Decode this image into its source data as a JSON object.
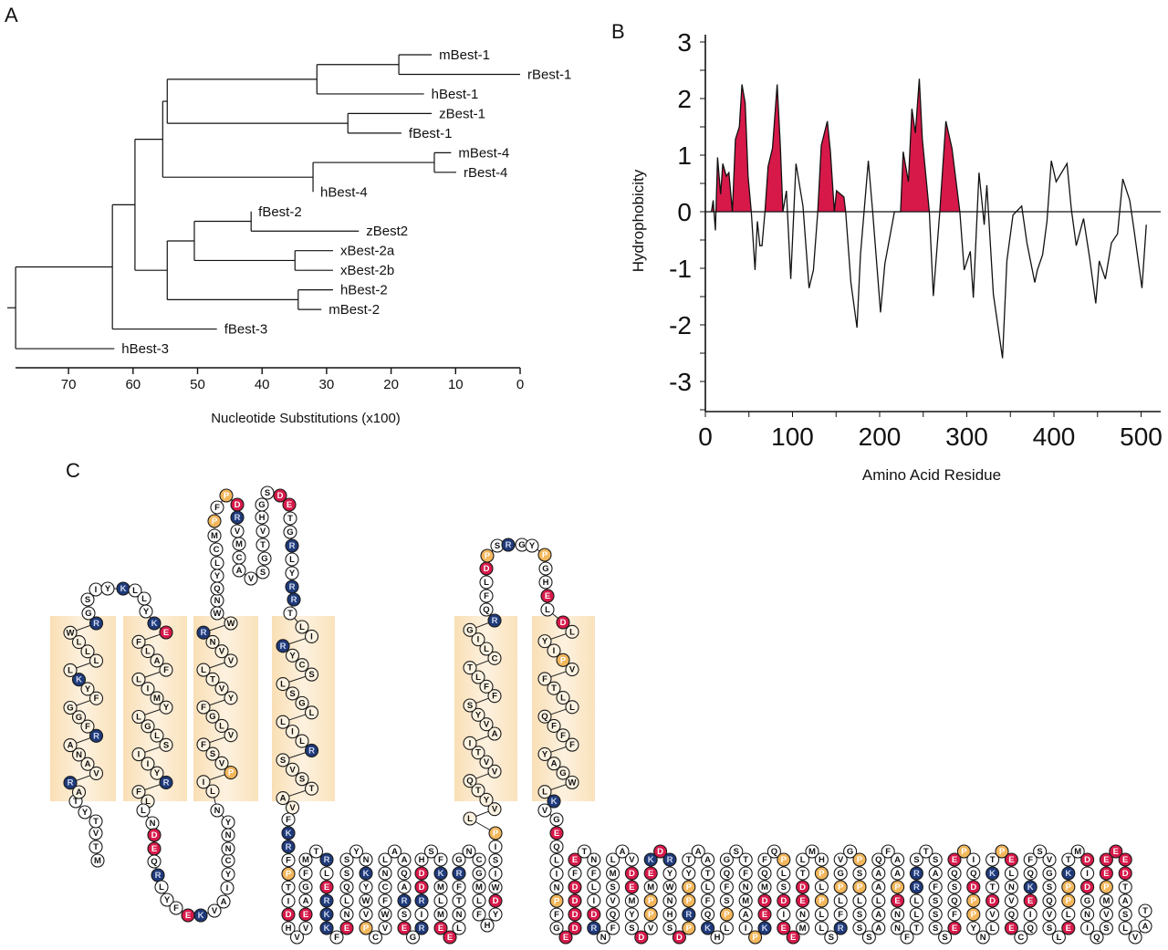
{
  "panels": {
    "a": "A",
    "b": "B",
    "c": "C"
  },
  "tree": {
    "axis_label": "Nucleotide Substitutions (x100)",
    "ticks": [
      70,
      60,
      50,
      40,
      30,
      20,
      10,
      0
    ],
    "axis_range": [
      78,
      0
    ],
    "root": {
      "h": 78.2,
      "c": [
        {
          "h": 63.2,
          "c": [
            {
              "h": 59.7,
              "c": [
                {
                  "h": 55.4,
                  "c": [
                    {
                      "h": 54.7,
                      "c": [
                        {
                          "h": 31.5,
                          "c": [
                            {
                              "h": 18.8,
                              "c": [
                                {
                                  "name": "mBest-1",
                                  "h": 13.7
                                },
                                {
                                  "name": "rBest-1",
                                  "h": 0
                                }
                              ]
                            },
                            {
                              "name": "hBest-1",
                              "h": 14.9
                            }
                          ]
                        },
                        {
                          "h": 26.7,
                          "c": [
                            {
                              "name": "zBest-1",
                              "h": 13.7
                            },
                            {
                              "name": "fBest-1",
                              "h": 18.4
                            }
                          ]
                        }
                      ]
                    },
                    {
                      "h": 32.1,
                      "c": [
                        {
                          "h": 13.3,
                          "c": [
                            {
                              "name": "mBest-4",
                              "h": 10.7
                            },
                            {
                              "name": "rBest-4",
                              "h": 9.9
                            }
                          ]
                        },
                        {
                          "name": "hBest-4",
                          "h": 32.1
                        }
                      ]
                    }
                  ]
                },
                {
                  "h": 54.7,
                  "c": [
                    {
                      "h": 50.5,
                      "c": [
                        {
                          "h": 41.7,
                          "c": [
                            {
                              "name": "fBest-2",
                              "h": 41.7
                            },
                            {
                              "name": "zBest2",
                              "h": 25
                            }
                          ]
                        },
                        {
                          "h": 34.9,
                          "c": [
                            {
                              "name": "xBest-2a",
                              "h": 29
                            },
                            {
                              "name": "xBest-2b",
                              "h": 29
                            }
                          ]
                        }
                      ]
                    },
                    {
                      "h": 34.4,
                      "c": [
                        {
                          "name": "hBest-2",
                          "h": 29
                        },
                        {
                          "name": "mBest-2",
                          "h": 30.8
                        }
                      ]
                    }
                  ]
                }
              ]
            },
            {
              "name": "fBest-3",
              "h": 47
            }
          ]
        },
        {
          "name": "hBest-3",
          "h": 62.9
        }
      ]
    }
  },
  "chart_data": {
    "type": "line",
    "title": "",
    "xlabel": "Amino Acid Residue",
    "ylabel": "Hydrophobicity",
    "xlim": [
      0,
      520
    ],
    "ylim": [
      -3.5,
      3.2
    ],
    "xticks": [
      0,
      100,
      200,
      300,
      400,
      500
    ],
    "yticks": [
      3,
      2,
      1,
      0,
      -1,
      -2,
      -3
    ],
    "grid": false,
    "fill_color": "#d7194a",
    "shaded_ranges": [
      [
        7,
        52
      ],
      [
        68,
        89
      ],
      [
        129,
        161
      ],
      [
        224,
        257
      ],
      [
        269,
        292
      ]
    ],
    "x": [
      7,
      9,
      11.5,
      14,
      17.5,
      20,
      24,
      27,
      31,
      34.5,
      39,
      42,
      45.7,
      49,
      52.7,
      57,
      59.7,
      62.5,
      65,
      68.4,
      72,
      77,
      82.4,
      86,
      89,
      93,
      98,
      104,
      112,
      119,
      124,
      129,
      133,
      140,
      143.5,
      148,
      150.5,
      159,
      161,
      167,
      174,
      178,
      187,
      192,
      201,
      206,
      217,
      224,
      227,
      233,
      237,
      241,
      245.5,
      249,
      257,
      261.6,
      269,
      276,
      283,
      292,
      297,
      304,
      307.5,
      314,
      320,
      323,
      330.5,
      341,
      346,
      353,
      363,
      369,
      378,
      381,
      387,
      392,
      397,
      402.5,
      415,
      420,
      425.6,
      434,
      441,
      448,
      452,
      459,
      466,
      473,
      479,
      487,
      492,
      501,
      506
    ],
    "y": [
      0,
      0.2,
      -0.33,
      0.96,
      0.31,
      0.85,
      0.63,
      0.69,
      0,
      1.28,
      1.5,
      2.25,
      1.92,
      0.63,
      0,
      -1.03,
      -0.17,
      -0.6,
      -0.6,
      0,
      0.8,
      1.12,
      2.25,
      1.17,
      0,
      0.37,
      -1.19,
      0.85,
      0.1,
      -1.35,
      -1.03,
      0,
      1.17,
      1.6,
      1.06,
      0,
      0.37,
      0.26,
      0,
      -1.25,
      -2.05,
      -0.76,
      0.9,
      0,
      -1.78,
      -0.92,
      0,
      0,
      1.06,
      0.53,
      1.82,
      1.39,
      2.35,
      1.28,
      0,
      -1.49,
      0,
      1.6,
      1.12,
      0,
      -1.03,
      -0.7,
      -1.52,
      0.69,
      -0.23,
      0.47,
      -1.46,
      -2.59,
      -0.87,
      -0.06,
      0.1,
      -0.55,
      -1.25,
      -1.03,
      -0.76,
      -0.17,
      0.9,
      0.53,
      0.85,
      0.04,
      -0.6,
      -0.12,
      -0.82,
      -1.62,
      -0.87,
      -1.19,
      -0.55,
      -0.39,
      0.58,
      0.2,
      -0.33,
      -1.35,
      -0.23
    ]
  },
  "topology": {
    "colors": {
      "basic": "#1f3a7a",
      "acidic": "#d7194a",
      "proline": "#f3b75c",
      "membrane": "#fbe3bf"
    },
    "segments": {
      "n_term": "MTVTYT",
      "tm1": "ARVANARFGGFYKLLLLWR",
      "loop1": "GSIYKLLYK",
      "tm2": "EFLAFLIMYLGLSIIYRFL",
      "loop2": "LNDEQRLYFEKVAIYCNNYN",
      "tm3": "LIPVSFVLGFYVTLVVNRW",
      "loop3": "WNQYLCMPFPDRVMCAVSGTVHGSDETGRLYRRT",
      "tm4": "LIRYCSLSGLLILRSVSTAV",
      "loop4": "FKRFPTIDHVVEAGFMTRLERKKFENLQSSYNKYWVPCVWFCNLAAQARSEGRIRDDHSFKMLMEELNTFRGNCGMLFHYDWISIP",
      "tm5": "LVYTQVVTIAVYSFFLTCLIGR",
      "loop5": "QFLDPSRGYPGHEL",
      "tm6": "DLYIPVFTLLQFFFYAGWLK",
      "c_term": "VGEQLINPFGEDDDDFETNFLIDRNFQVSMLAVDEMYSDVPPMEKDRYWNHSDPRPPYTAATLFQKHLPSFQGSTFNMAIPKEDMQFQPLSDIEEMNEDTLMHPLPLLSRFLPGVGPSPLSSSAALAAQFAAPENNFTLLRRSTSAFSSSSEFQSQEPIQDPPYNLVDTKTPELNVQECQIEKQFSVGSQVSLELPPKTMDIDGNIQSVMPEEEEDTASLVAT"
    }
  }
}
